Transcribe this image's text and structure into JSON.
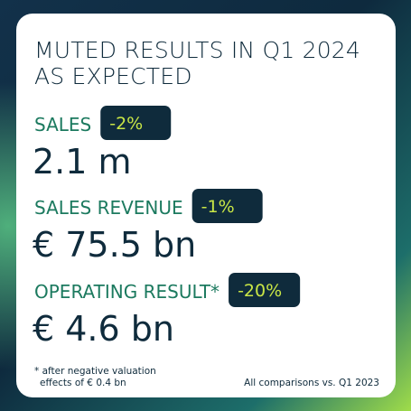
{
  "title": [
    "MUTED RESULTS IN Q1 2024",
    "AS EXPECTED"
  ],
  "metrics": [
    {
      "label": "SALES",
      "change": "-2%",
      "value": "2.1 m"
    },
    {
      "label": "SALES REVENUE",
      "change": "-1%",
      "value": "€ 75.5 bn"
    },
    {
      "label": "OPERATING RESULT*",
      "change": "-20%",
      "value": "€ 4.6 bn"
    }
  ],
  "footnote": [
    "* after negative valuation",
    "effects of € 0.4 bn"
  ],
  "comparison": "All comparisons vs. Q1 2023"
}
